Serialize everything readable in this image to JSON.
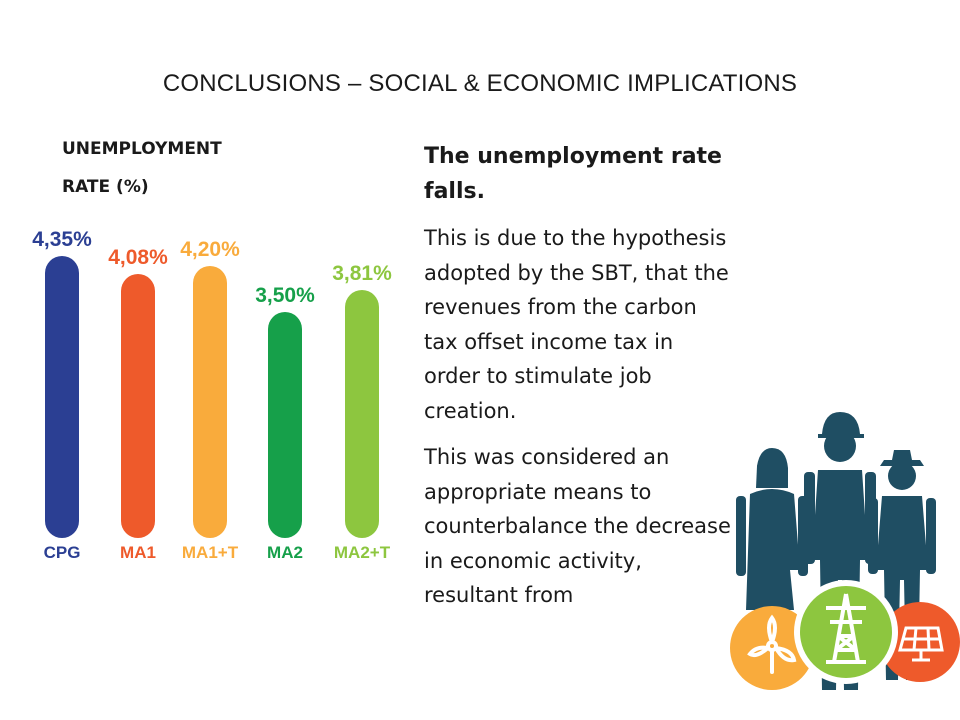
{
  "slide": {
    "title": "CONCLUSIONS – SOCIAL & ECONOMIC IMPLICATIONS",
    "chart_title_line1": "UNEMPLOYMENT",
    "chart_title_line2": "RATE (%)",
    "heading": "The unemployment rate falls.",
    "paragraph1": "This is due to the hypothesis adopted by the SBT, that the revenues from the carbon tax offset income tax in order to stimulate job creation.",
    "paragraph2": "This was considered an appropriate means to counterbalance the decrease in economic activity, resultant from"
  },
  "chart_data": {
    "type": "bar",
    "title": "UNEMPLOYMENT RATE (%)",
    "categories": [
      "CPG",
      "MA1",
      "MA1+T",
      "MA2",
      "MA2+T"
    ],
    "values": [
      4.35,
      4.08,
      4.2,
      3.5,
      3.81
    ],
    "value_labels": [
      "4,35%",
      "4,08%",
      "4,20%",
      "3,50%",
      "3,81%"
    ],
    "colors": [
      "#2b3f93",
      "#ee5a2b",
      "#f9ab3c",
      "#16a04a",
      "#8dc63f"
    ],
    "label_colors": [
      "#2b3f93",
      "#ee5a2b",
      "#f9ab3c",
      "#16a04a",
      "#8dc63f"
    ],
    "grid": false
  },
  "icons": {
    "workers": "workers-group-icon",
    "wind": "wind-turbine-icon",
    "power": "power-pylon-icon",
    "solar": "solar-panel-icon",
    "colors": {
      "people": "#1f4e63",
      "wind": "#f9ab3c",
      "power": "#8dc63f",
      "solar": "#ee5a2b"
    }
  }
}
